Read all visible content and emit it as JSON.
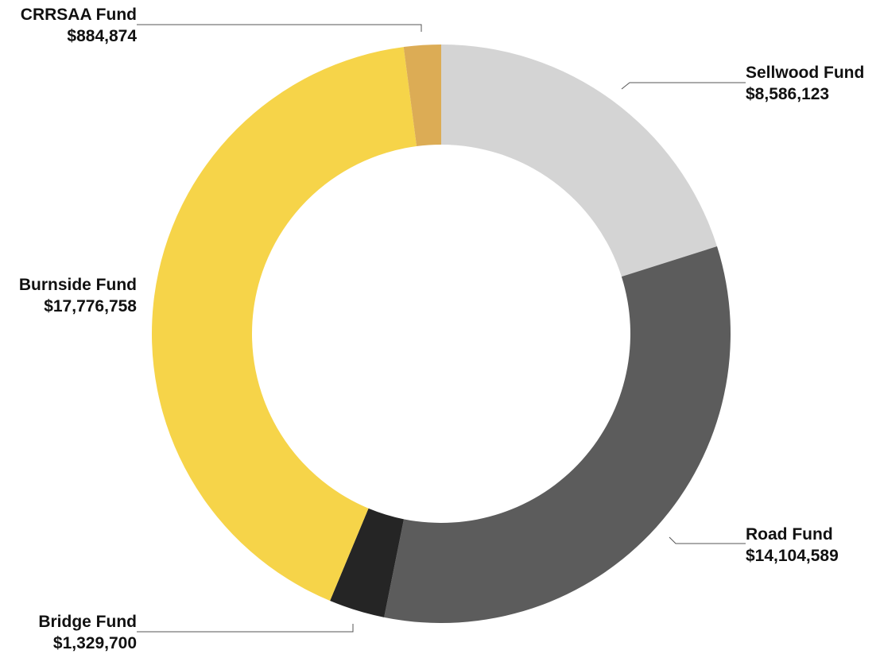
{
  "chart_data": {
    "type": "pie",
    "style": "donut",
    "title": "",
    "slices": [
      {
        "label": "Sellwood Fund",
        "value": 8586123,
        "value_label": "$8,586,123",
        "color": "#d4d4d4"
      },
      {
        "label": "Road Fund",
        "value": 14104589,
        "value_label": "$14,104,589",
        "color": "#5c5c5c"
      },
      {
        "label": "Bridge Fund",
        "value": 1329700,
        "value_label": "$1,329,700",
        "color": "#252525"
      },
      {
        "label": "Burnside Fund",
        "value": 17776758,
        "value_label": "$17,776,758",
        "color": "#f6d449"
      },
      {
        "label": "CRRSAA Fund",
        "value": 884874,
        "value_label": "$884,874",
        "color": "#dcac55"
      }
    ],
    "legend": "none",
    "labels": "outside-with-leader-lines"
  }
}
